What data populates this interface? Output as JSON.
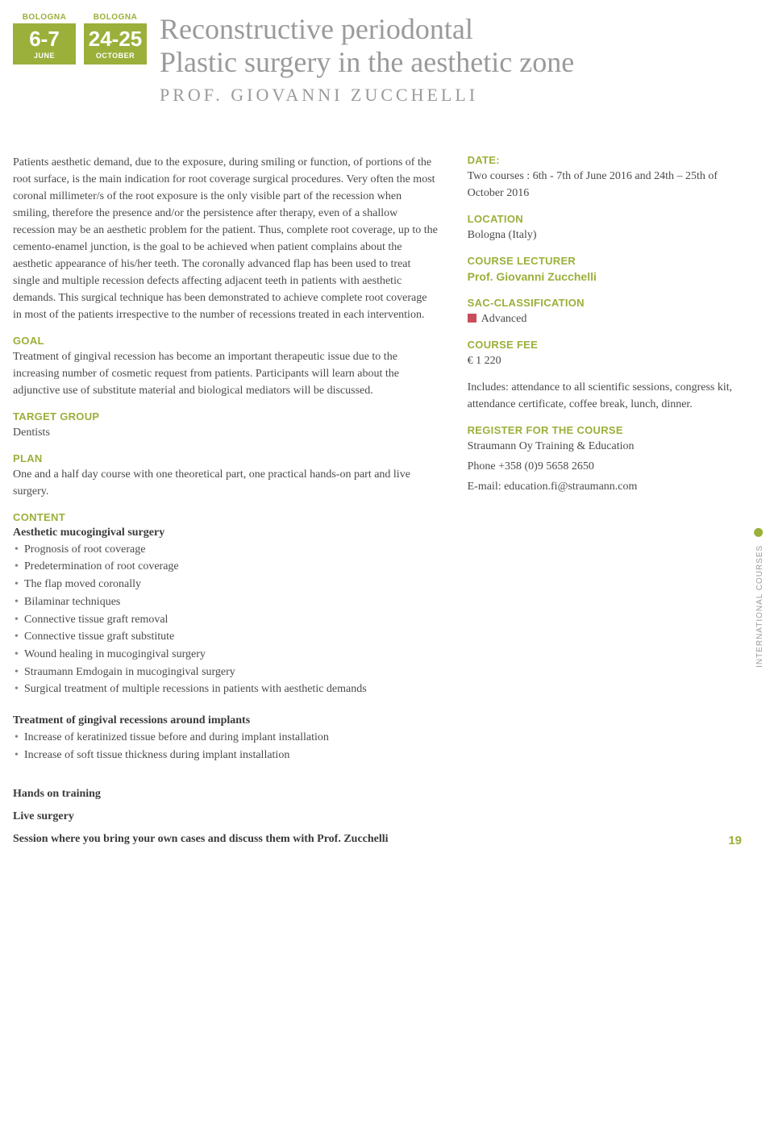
{
  "badges": [
    {
      "city": "BOLOGNA",
      "date": "6-7",
      "month": "JUNE"
    },
    {
      "city": "BOLOGNA",
      "date": "24-25",
      "month": "OCTOBER"
    }
  ],
  "title_line1": "Reconstructive periodontal",
  "title_line2": "Plastic surgery in the aesthetic zone",
  "prof": "PROF. GIOVANNI ZUCCHELLI",
  "intro": "Patients aesthetic demand, due to the exposure, during smiling or function, of portions of the root surface, is the main indication for root coverage surgical procedures. Very often the most coronal millimeter/s of the root exposure is the only visible part of the recession when smiling, therefore the presence and/or the persistence after therapy, even of a shallow recession may be an aesthetic problem for the patient. Thus, complete root coverage, up to the cemento-enamel junction, is the goal to be achieved when patient complains about the aesthetic appearance of his/her teeth. The coronally advanced flap has been used to treat single and multiple recession defects affecting adjacent teeth in patients with aesthetic demands. This surgical technique has been demonstrated to achieve complete root coverage in most of the patients irrespective to the number of recessions treated in each intervention.",
  "labels": {
    "goal": "GOAL",
    "target": "TARGET GROUP",
    "plan": "PLAN",
    "content": "CONTENT",
    "date": "DATE:",
    "location": "LOCATION",
    "lecturer": "COURSE LECTURER",
    "sac": "SAC-CLASSIFICATION",
    "fee": "COURSE FEE",
    "register": "REGISTER FOR THE COURSE"
  },
  "goal": "Treatment of gingival recession has become an important therapeutic issue due to the increasing number of cosmetic request from patients. Participants will learn about the adjunctive use of substitute material and biological mediators will be discussed.",
  "target": "Dentists",
  "plan": "One and a half day course with one theoretical part, one practical hands-on part and live surgery.",
  "content_h1": "Aesthetic mucogingival surgery",
  "content_list1": [
    "Prognosis of root coverage",
    "Predetermination of root coverage",
    "The flap moved coronally",
    "Bilaminar techniques",
    "Connective tissue graft removal",
    "Connective tissue graft substitute",
    "Wound healing in mucogingival surgery",
    "Straumann Emdogain in mucogingival surgery",
    "Surgical treatment of multiple recessions in patients with aesthetic demands"
  ],
  "content_h2": "Treatment of gingival recessions around implants",
  "content_list2": [
    "Increase of keratinized tissue before and during implant installation",
    "Increase of soft tissue thickness during implant installation"
  ],
  "hands_on": "Hands on training",
  "live": "Live surgery",
  "session": "Session where you bring your own cases and discuss them with Prof. Zucchelli",
  "right": {
    "date_text": "Two courses : 6th - 7th of June 2016 and 24th – 25th of October 2016",
    "location": "Bologna (Italy)",
    "lecturer": "Prof. Giovanni Zucchelli",
    "sac": "Advanced",
    "fee": "€   1 220",
    "includes": "Includes: attendance to all scientific sessions, congress kit, attendance certificate, coffee break, lunch, dinner.",
    "reg1": "Straumann Oy Training & Education",
    "reg2": "Phone +358 (0)9 5658 2650",
    "reg3": "E-mail: education.fi@straumann.com"
  },
  "side_label": "INTERNATIONAL COURSES",
  "page_num": "19",
  "colors": {
    "accent": "#9ab03a",
    "gray_title": "#9a9a9a",
    "sac_red": "#c84d5a",
    "body_text": "#4a4a4a"
  }
}
